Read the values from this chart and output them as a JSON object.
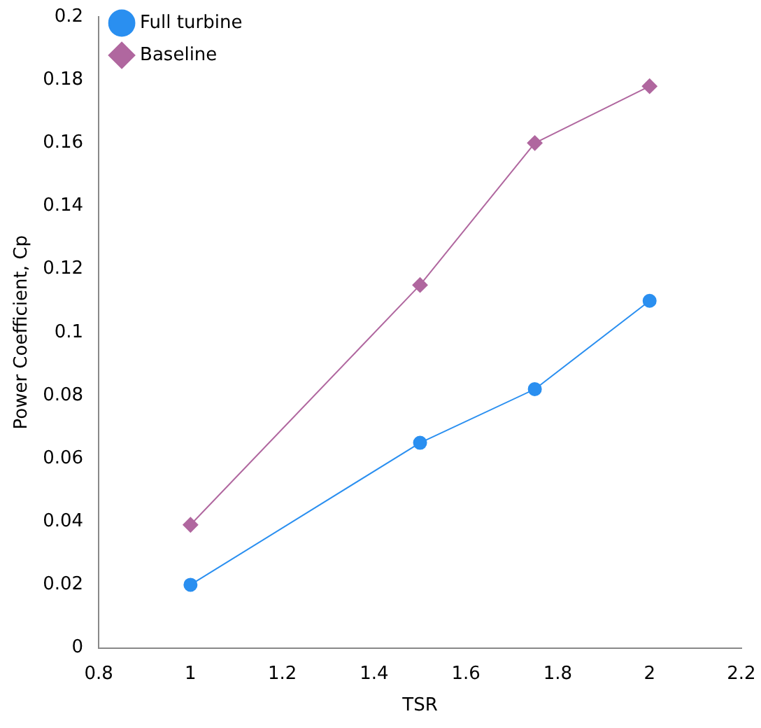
{
  "chart_data": {
    "type": "line",
    "xlabel": "TSR",
    "ylabel": "Power Coefficient, Cp",
    "x": [
      1,
      1.5,
      1.75,
      2
    ],
    "series": [
      {
        "name": "Full turbine",
        "color": "#2a8ff0",
        "values": [
          0.02,
          0.065,
          0.082,
          0.11
        ],
        "marker": "circle"
      },
      {
        "name": "Baseline",
        "color": "#b0679f",
        "values": [
          0.039,
          0.115,
          0.16,
          0.178
        ],
        "marker": "diamond"
      }
    ],
    "xlim": [
      0.8,
      2.2
    ],
    "xticks": [
      0.8,
      1,
      1.2,
      1.4,
      1.6,
      1.8,
      2,
      2.2
    ],
    "ylim": [
      0,
      0.2
    ],
    "yticks": [
      0,
      0.02,
      0.04,
      0.06,
      0.08,
      0.1,
      0.12,
      0.14,
      0.16,
      0.18,
      0.2
    ],
    "grid": false,
    "legend": "top left",
    "line_style": "solid"
  }
}
